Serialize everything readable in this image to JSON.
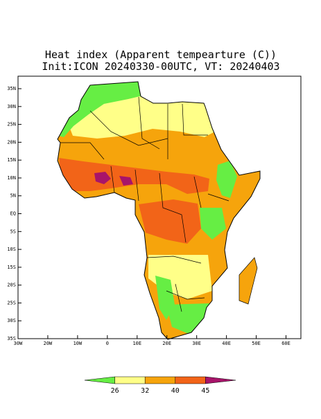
{
  "map": {
    "title": "Heat index (Apparent tempearture (C))",
    "subtitle": "Init:ICON 20240330-00UTC, VT: 20240403",
    "xlim": [
      -30,
      65
    ],
    "ylim": [
      -35,
      38.5
    ],
    "lon_ticks": [
      {
        "value": -30,
        "label": "30W"
      },
      {
        "value": -20,
        "label": "20W"
      },
      {
        "value": -10,
        "label": "10W"
      },
      0,
      {
        "value": 10,
        "label": "10E"
      },
      {
        "value": 20,
        "label": "20E"
      },
      {
        "value": 30,
        "label": "30E"
      },
      {
        "value": 40,
        "label": "40E"
      },
      {
        "value": 50,
        "label": "50E"
      },
      {
        "value": 60,
        "label": "60E"
      }
    ],
    "lat_ticks": [
      {
        "value": 35,
        "label": "35N"
      },
      {
        "value": 30,
        "label": "30N"
      },
      {
        "value": 25,
        "label": "25N"
      },
      {
        "value": 20,
        "label": "20N"
      },
      {
        "value": 15,
        "label": "15N"
      },
      {
        "value": 10,
        "label": "10N"
      },
      {
        "value": 5,
        "label": "5N"
      },
      {
        "value": 0,
        "label": "EQ"
      },
      {
        "value": -5,
        "label": "5S"
      },
      {
        "value": -10,
        "label": "10S"
      },
      {
        "value": -15,
        "label": "15S"
      },
      {
        "value": -20,
        "label": "20S"
      },
      {
        "value": -25,
        "label": "25S"
      },
      {
        "value": -30,
        "label": "30S"
      },
      {
        "value": -35,
        "label": "35S"
      }
    ]
  },
  "colorbar": {
    "colors": [
      "#66ee44",
      "#ffff88",
      "#f6a40c",
      "#f26418",
      "#a8146a"
    ],
    "boundaries": [
      26,
      32,
      40,
      45
    ]
  }
}
